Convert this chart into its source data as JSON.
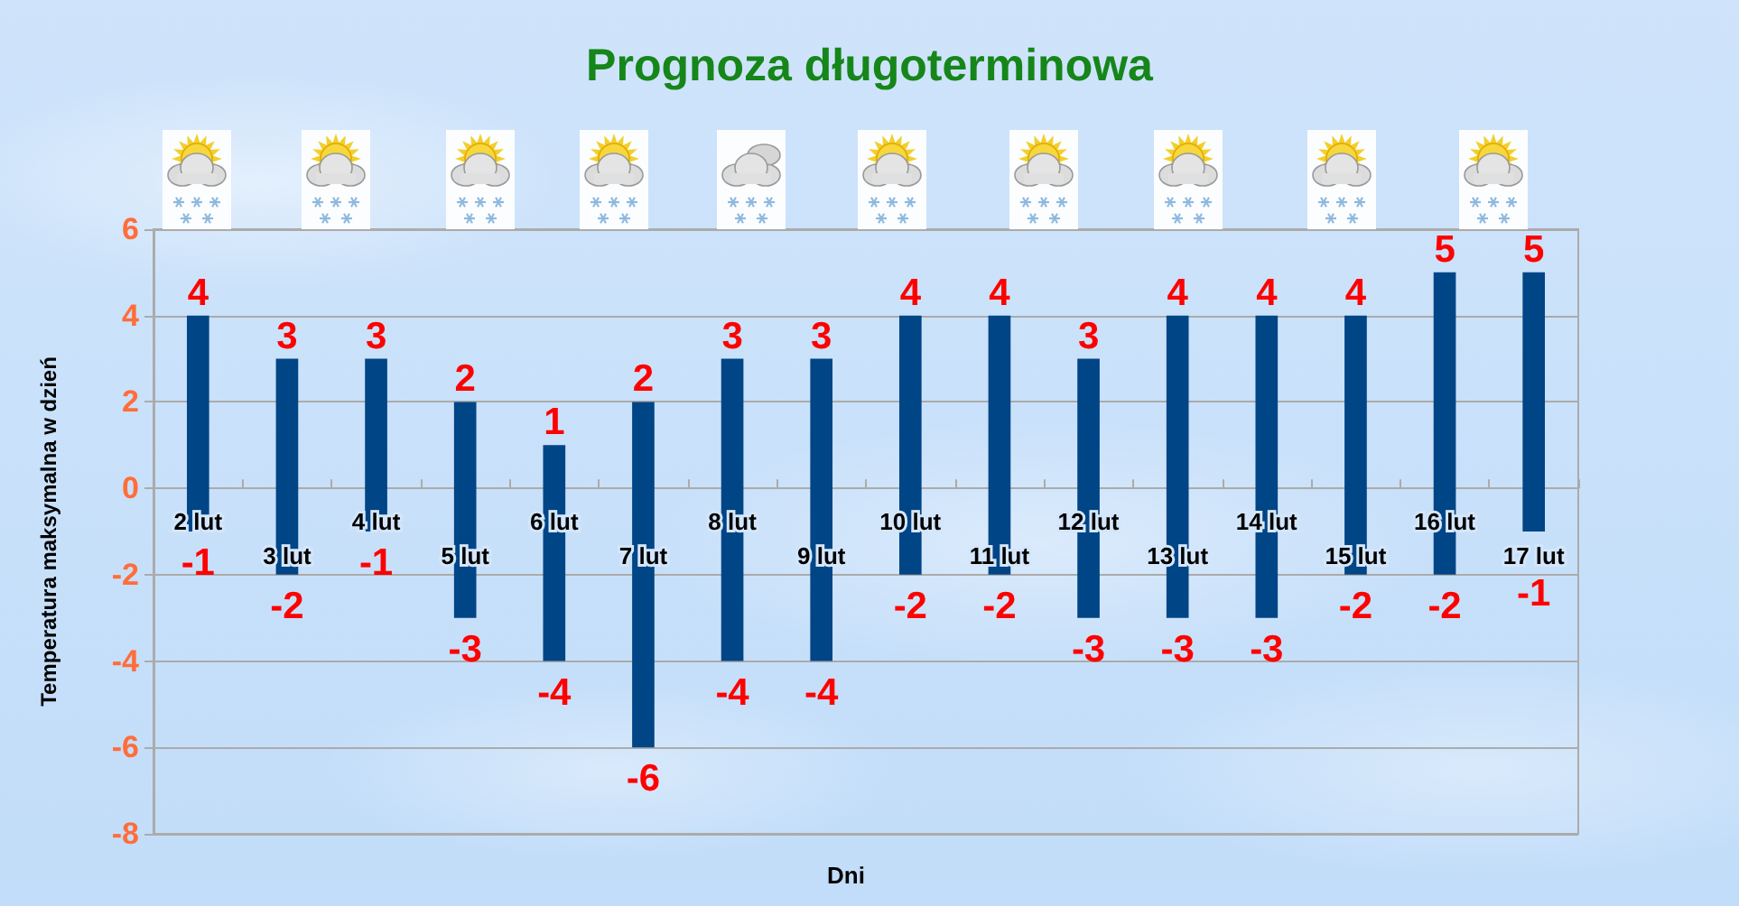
{
  "chart_data": {
    "type": "bar",
    "title": "Prognoza długoterminowa",
    "xlabel": "Dni",
    "ylabel": "Temperatura maksymalna w dzień",
    "categories": [
      "2 lut",
      "3 lut",
      "4 lut",
      "5 lut",
      "6 lut",
      "7 lut",
      "8 lut",
      "9 lut",
      "10 lut",
      "11 lut",
      "12 lut",
      "13 lut",
      "14 lut",
      "15 lut",
      "16 lut",
      "17 lut"
    ],
    "values": [
      5,
      5,
      4,
      5,
      5,
      8,
      7,
      7,
      6,
      6,
      6,
      7,
      7,
      6,
      7,
      6
    ],
    "base": [
      -1,
      -2,
      -1,
      -3,
      -4,
      -6,
      -4,
      -4,
      -2,
      -2,
      -3,
      -3,
      -3,
      -2,
      -2,
      -1
    ],
    "color": "#004586",
    "ylim": [
      -8,
      6
    ],
    "yticks": [
      -8,
      -6,
      -4,
      -2,
      0,
      2,
      4,
      6
    ],
    "grid": "y",
    "annotations": [
      {
        "text": "4",
        "x": "2 lut",
        "y": 4
      },
      {
        "text": "-1",
        "x": "2 lut",
        "y": -1
      },
      {
        "text": "3",
        "x": "3 lut",
        "y": 3
      },
      {
        "text": "-2",
        "x": "3 lut",
        "y": -2
      },
      {
        "text": "3",
        "x": "4 lut",
        "y": 3
      },
      {
        "text": "-1",
        "x": "4 lut",
        "y": -1
      },
      {
        "text": "2",
        "x": "5 lut",
        "y": 2
      },
      {
        "text": "-3",
        "x": "5 lut",
        "y": -3
      },
      {
        "text": "1",
        "x": "6 lut",
        "y": 1
      },
      {
        "text": "-4",
        "x": "6 lut",
        "y": -4
      },
      {
        "text": "2",
        "x": "7 lut",
        "y": 2
      },
      {
        "text": "-6",
        "x": "7 lut",
        "y": -6
      },
      {
        "text": "3",
        "x": "8 lut",
        "y": 3
      },
      {
        "text": "-4",
        "x": "8 lut",
        "y": -4
      },
      {
        "text": "3",
        "x": "9 lut",
        "y": 3
      },
      {
        "text": "-4",
        "x": "9 lut",
        "y": -4
      },
      {
        "text": "4",
        "x": "10 lut",
        "y": 4
      },
      {
        "text": "-2",
        "x": "10 lut",
        "y": -2
      },
      {
        "text": "4",
        "x": "11 lut",
        "y": 4
      },
      {
        "text": "-2",
        "x": "11 lut",
        "y": -2
      },
      {
        "text": "3",
        "x": "12 lut",
        "y": 3
      },
      {
        "text": "-3",
        "x": "12 lut",
        "y": -3
      },
      {
        "text": "4",
        "x": "13 lut",
        "y": 4
      },
      {
        "text": "-3",
        "x": "13 lut",
        "y": -3
      },
      {
        "text": "4",
        "x": "14 lut",
        "y": 4
      },
      {
        "text": "-3",
        "x": "14 lut",
        "y": -3
      },
      {
        "text": "4",
        "x": "15 lut",
        "y": 4
      },
      {
        "text": "-2",
        "x": "15 lut",
        "y": -2
      },
      {
        "text": "5",
        "x": "16 lut",
        "y": 5
      },
      {
        "text": "-2",
        "x": "16 lut",
        "y": -2
      },
      {
        "text": "5",
        "x": "17 lut",
        "y": 5
      },
      {
        "text": "-1",
        "x": "17 lut",
        "y": -1
      }
    ]
  }
}
